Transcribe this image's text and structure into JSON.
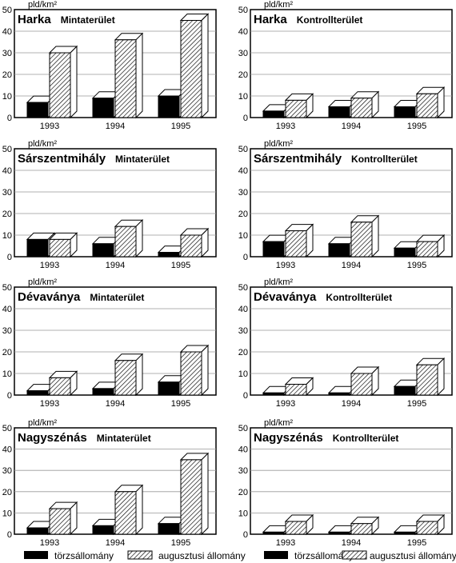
{
  "colors": {
    "torzs": "#000000",
    "augusztusi": "hatched",
    "frame": "#000000",
    "background": "#ffffff"
  },
  "legend": {
    "torzs_label": "törzsállomány",
    "augusztusi_label": "augusztusi állomány"
  },
  "chart_data": [
    {
      "type": "bar",
      "title": "Harka",
      "subtitle": "Mintaterület",
      "ylabel": "pld/km²",
      "ylim": [
        0,
        50
      ],
      "yticks": [
        0,
        10,
        20,
        30,
        40,
        50
      ],
      "categories": [
        "1993",
        "1994",
        "1995"
      ],
      "series": [
        {
          "name": "törzsállomány",
          "values": [
            7,
            9,
            10
          ]
        },
        {
          "name": "augusztusi állomány",
          "values": [
            30,
            36,
            45
          ]
        }
      ]
    },
    {
      "type": "bar",
      "title": "Harka",
      "subtitle": "Kontrollterület",
      "ylabel": "pld/km²",
      "ylim": [
        0,
        50
      ],
      "yticks": [
        0,
        10,
        20,
        30,
        40,
        50
      ],
      "categories": [
        "1993",
        "1994",
        "1995"
      ],
      "series": [
        {
          "name": "törzsállomány",
          "values": [
            3,
            5,
            5
          ]
        },
        {
          "name": "augusztusi állomány",
          "values": [
            8,
            9,
            11
          ]
        }
      ]
    },
    {
      "type": "bar",
      "title": "Sárszentmihály",
      "subtitle": "Mintaterület",
      "ylabel": "pld/km²",
      "ylim": [
        0,
        50
      ],
      "yticks": [
        0,
        10,
        20,
        30,
        40,
        50
      ],
      "categories": [
        "1993",
        "1994",
        "1995"
      ],
      "series": [
        {
          "name": "törzsállomány",
          "values": [
            8,
            6,
            2
          ]
        },
        {
          "name": "augusztusi állomány",
          "values": [
            8,
            14,
            10
          ]
        }
      ]
    },
    {
      "type": "bar",
      "title": "Sárszentmihály",
      "subtitle": "Kontrollterület",
      "ylabel": "pld/km²",
      "ylim": [
        0,
        50
      ],
      "yticks": [
        0,
        10,
        20,
        30,
        40,
        50
      ],
      "categories": [
        "1993",
        "1994",
        "1995"
      ],
      "series": [
        {
          "name": "törzsállomány",
          "values": [
            7,
            6,
            4
          ]
        },
        {
          "name": "augusztusi állomány",
          "values": [
            12,
            16,
            7
          ]
        }
      ]
    },
    {
      "type": "bar",
      "title": "Dévaványa",
      "subtitle": "Mintaterület",
      "ylabel": "pld/km²",
      "ylim": [
        0,
        50
      ],
      "yticks": [
        0,
        10,
        20,
        30,
        40,
        50
      ],
      "categories": [
        "1993",
        "1994",
        "1995"
      ],
      "series": [
        {
          "name": "törzsállomány",
          "values": [
            2,
            3,
            6
          ]
        },
        {
          "name": "augusztusi állomány",
          "values": [
            8,
            16,
            20
          ]
        }
      ]
    },
    {
      "type": "bar",
      "title": "Dévaványa",
      "subtitle": "Kontrollterület",
      "ylabel": "pld/km²",
      "ylim": [
        0,
        50
      ],
      "yticks": [
        0,
        10,
        20,
        30,
        40,
        50
      ],
      "categories": [
        "1993",
        "1994",
        "1995"
      ],
      "series": [
        {
          "name": "törzsállomány",
          "values": [
            1,
            1,
            4
          ]
        },
        {
          "name": "augusztusi állomány",
          "values": [
            5,
            10,
            14
          ]
        }
      ]
    },
    {
      "type": "bar",
      "title": "Nagyszénás",
      "subtitle": "Mintaterület",
      "ylabel": "pld/km²",
      "ylim": [
        0,
        50
      ],
      "yticks": [
        0,
        10,
        20,
        30,
        40,
        50
      ],
      "categories": [
        "1993",
        "1994",
        "1995"
      ],
      "series": [
        {
          "name": "törzsállomány",
          "values": [
            3,
            4,
            5
          ]
        },
        {
          "name": "augusztusi állomány",
          "values": [
            12,
            20,
            35
          ]
        }
      ]
    },
    {
      "type": "bar",
      "title": "Nagyszénás",
      "subtitle": "Kontrollterület",
      "ylabel": "pld/km²",
      "ylim": [
        0,
        50
      ],
      "yticks": [
        0,
        10,
        20,
        30,
        40,
        50
      ],
      "categories": [
        "1993",
        "1994",
        "1995"
      ],
      "series": [
        {
          "name": "törzsállomány",
          "values": [
            1,
            1,
            1
          ]
        },
        {
          "name": "augusztusi állomány",
          "values": [
            6,
            5,
            6
          ]
        }
      ]
    }
  ]
}
